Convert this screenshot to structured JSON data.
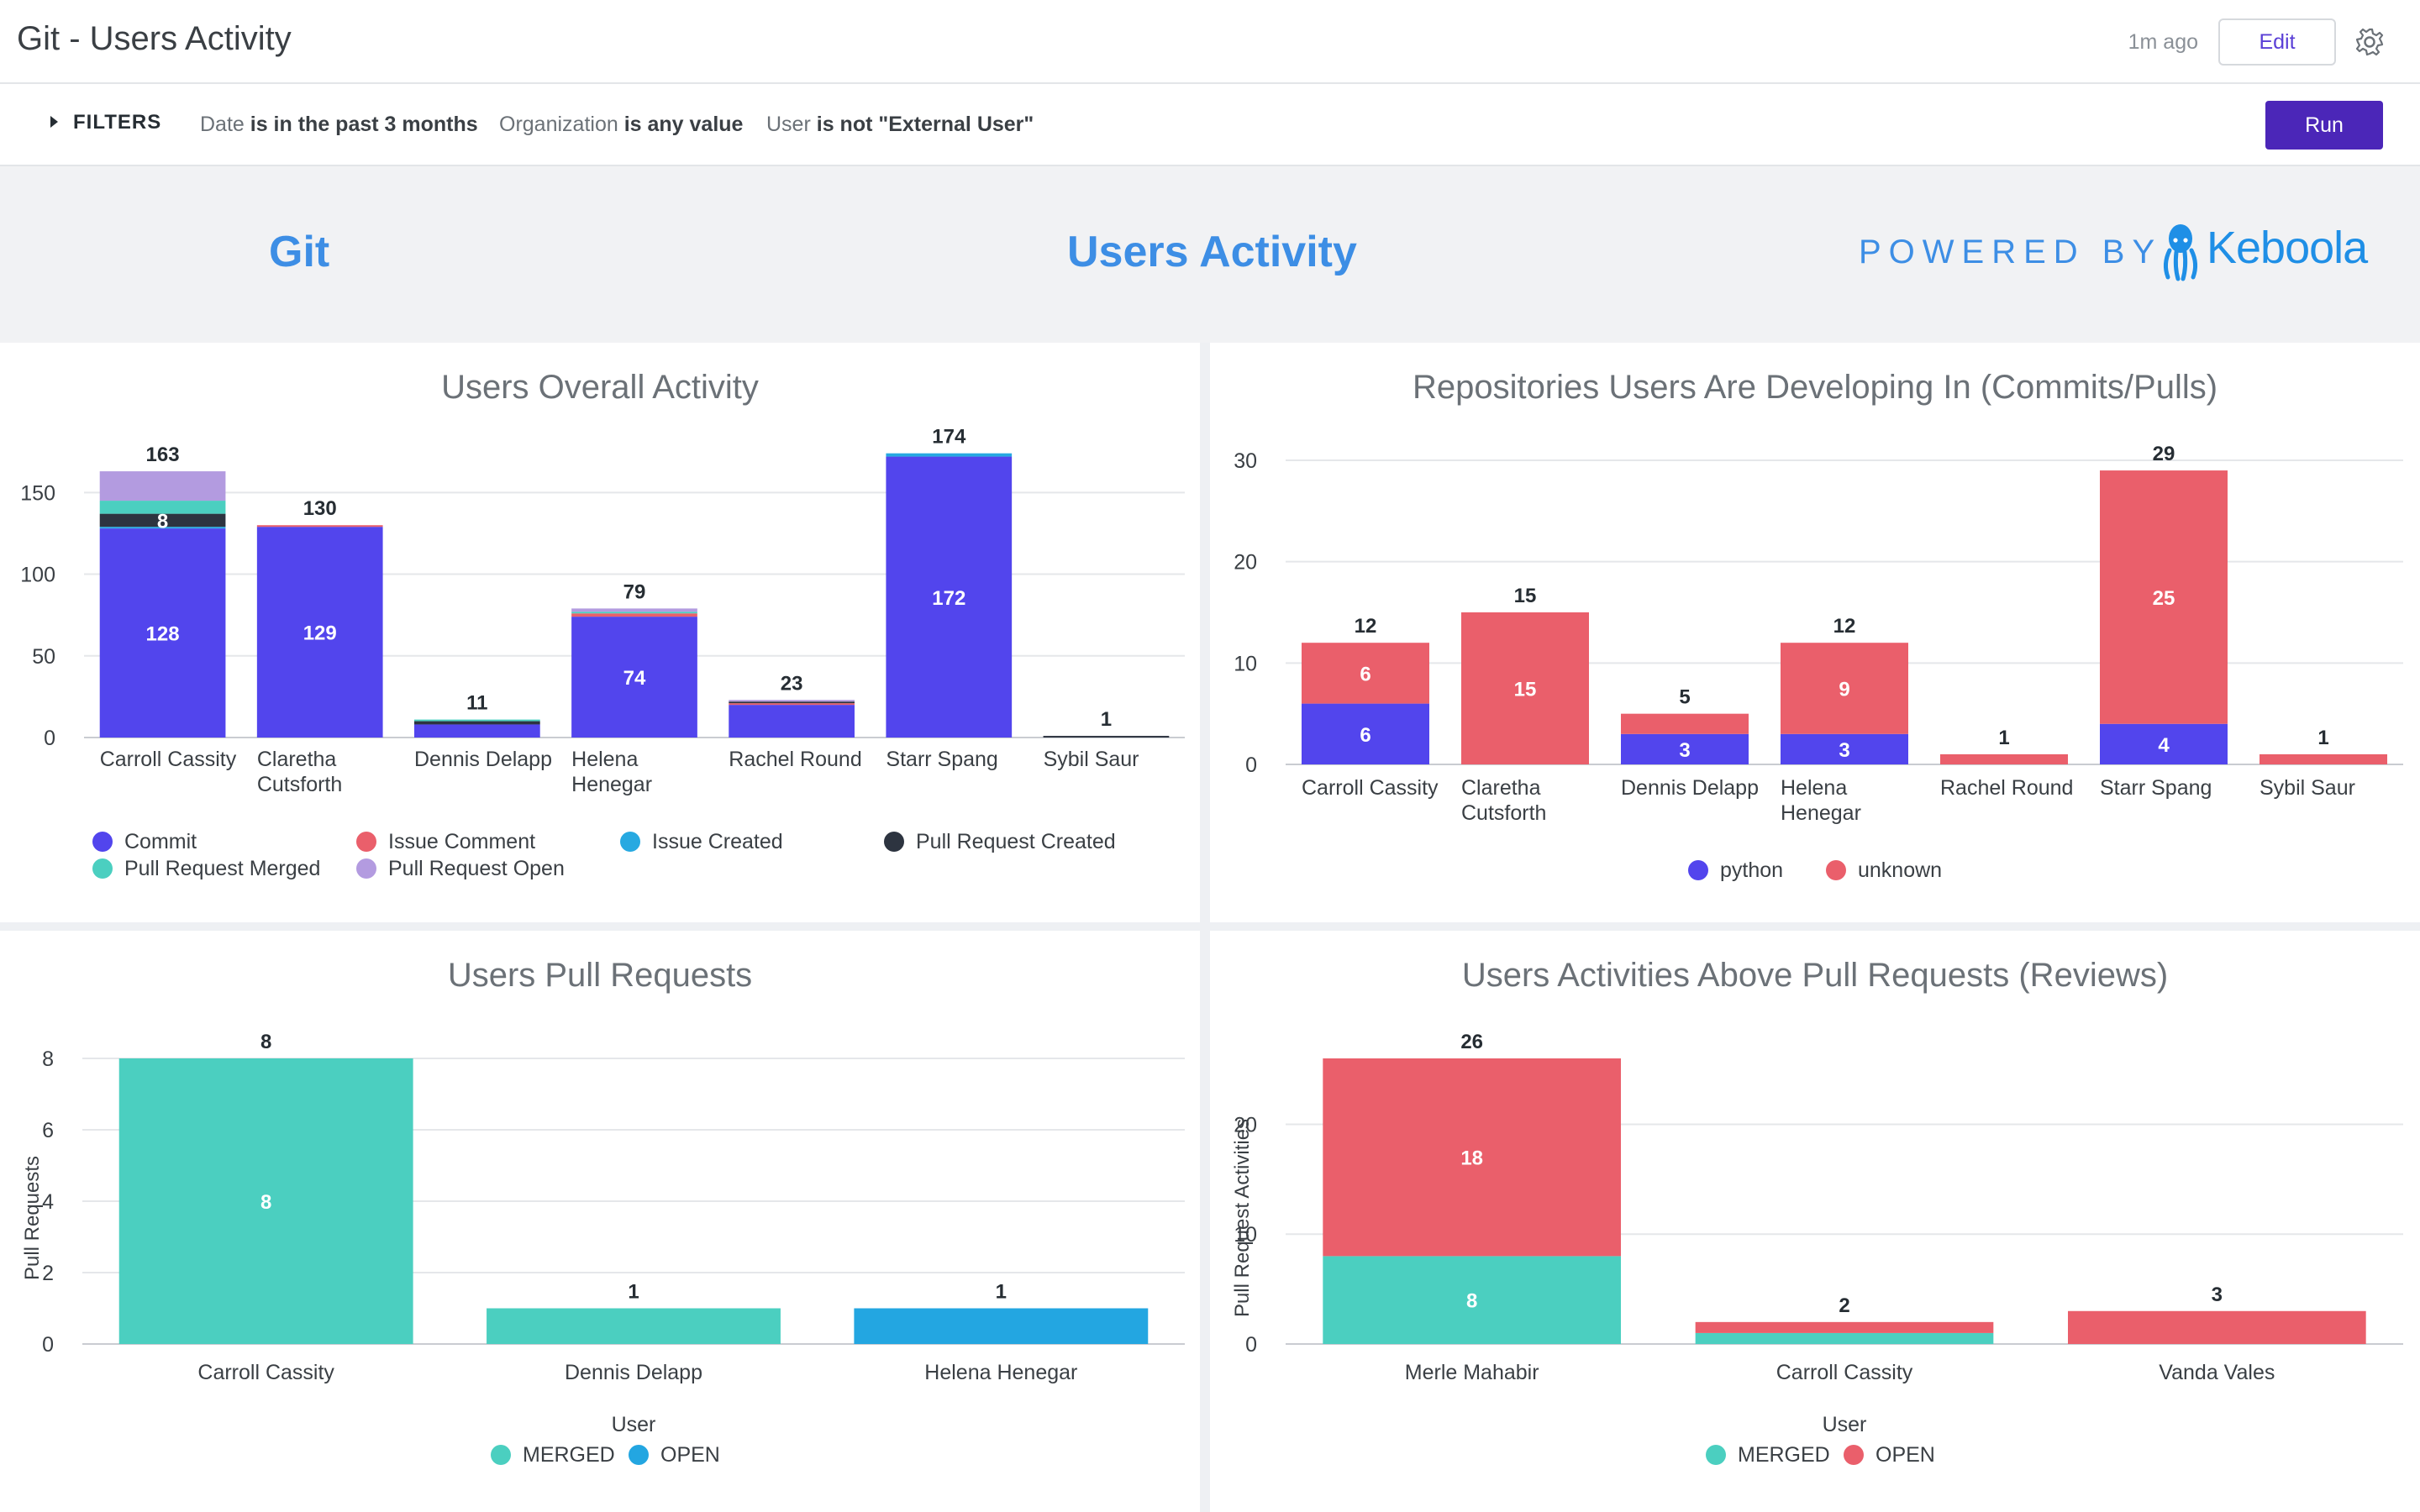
{
  "header": {
    "title": "Git - Users Activity",
    "last_run": "1m ago",
    "edit_label": "Edit"
  },
  "filters": {
    "toggle_label": "FILTERS",
    "items": [
      {
        "field": "Date",
        "condition": "is in the past 3 months"
      },
      {
        "field": "Organization",
        "condition": "is any value"
      },
      {
        "field": "User",
        "condition": "is not \"External User\""
      }
    ],
    "run_label": "Run"
  },
  "banner": {
    "left": "Git",
    "center": "Users Activity",
    "powered_by": "POWERED BY",
    "brand": "Keboola"
  },
  "colors": {
    "commit": "#5245ed",
    "issue_comment": "#ea5f6b",
    "issue_created": "#27a9e1",
    "pr_created": "#2d3440",
    "pr_merged": "#4bcfc0",
    "pr_open": "#b39be0",
    "python": "#5245ed",
    "unknown": "#ea5f6b",
    "merged": "#4bcfc0",
    "open_blue": "#23a6e1",
    "open_red": "#ea5f6b"
  },
  "chart_data": [
    {
      "type": "bar",
      "stacked": true,
      "title": "Users Overall Activity",
      "categories": [
        [
          "Carroll Cassity"
        ],
        [
          "Claretha",
          "Cutsforth"
        ],
        [
          "Dennis Delapp"
        ],
        [
          "Helena",
          "Henegar"
        ],
        [
          "Rachel Round"
        ],
        [
          "Starr Spang"
        ],
        [
          "Sybil Saur"
        ]
      ],
      "series": [
        {
          "name": "Commit",
          "color": "#5245ed",
          "values": [
            128,
            129,
            8,
            74,
            20,
            172,
            0
          ]
        },
        {
          "name": "Issue Comment",
          "color": "#ea5f6b",
          "values": [
            0,
            1,
            0,
            2,
            1,
            0,
            0
          ]
        },
        {
          "name": "Issue Created",
          "color": "#27a9e1",
          "values": [
            1,
            0,
            0,
            0,
            0,
            2,
            0
          ]
        },
        {
          "name": "Pull Request Created",
          "color": "#2d3440",
          "values": [
            8,
            0,
            2,
            0,
            1,
            0,
            1
          ]
        },
        {
          "name": "Pull Request Merged",
          "color": "#4bcfc0",
          "values": [
            8,
            0,
            1,
            1,
            0,
            0,
            0
          ]
        },
        {
          "name": "Pull Request Open",
          "color": "#b39be0",
          "values": [
            18,
            0,
            0,
            2,
            1,
            0,
            0
          ]
        }
      ],
      "segment_labels": [
        {
          "category": 0,
          "series": 0,
          "text": "128"
        },
        {
          "category": 0,
          "series": 3,
          "text": "8"
        },
        {
          "category": 1,
          "series": 0,
          "text": "129"
        },
        {
          "category": 3,
          "series": 0,
          "text": "74"
        },
        {
          "category": 5,
          "series": 0,
          "text": "172"
        }
      ],
      "totals": [
        "163",
        "130",
        "11",
        "79",
        "23",
        "174",
        "1"
      ],
      "yticks": [
        0,
        50,
        100,
        150
      ],
      "ylim": [
        0,
        180
      ],
      "legend": "bottom"
    },
    {
      "type": "bar",
      "stacked": true,
      "title": "Repositories Users Are Developing In (Commits/Pulls)",
      "categories": [
        [
          "Carroll Cassity"
        ],
        [
          "Claretha",
          "Cutsforth"
        ],
        [
          "Dennis Delapp"
        ],
        [
          "Helena",
          "Henegar"
        ],
        [
          "Rachel Round"
        ],
        [
          "Starr Spang"
        ],
        [
          "Sybil Saur"
        ]
      ],
      "series": [
        {
          "name": "python",
          "color": "#5245ed",
          "values": [
            6,
            0,
            3,
            3,
            0,
            4,
            0
          ]
        },
        {
          "name": "unknown",
          "color": "#ea5f6b",
          "values": [
            6,
            15,
            2,
            9,
            1,
            25,
            1
          ]
        }
      ],
      "segment_labels": [
        {
          "category": 0,
          "series": 0,
          "text": "6"
        },
        {
          "category": 0,
          "series": 1,
          "text": "6"
        },
        {
          "category": 1,
          "series": 1,
          "text": "15"
        },
        {
          "category": 2,
          "series": 0,
          "text": "3"
        },
        {
          "category": 3,
          "series": 0,
          "text": "3"
        },
        {
          "category": 3,
          "series": 1,
          "text": "9"
        },
        {
          "category": 5,
          "series": 0,
          "text": "4"
        },
        {
          "category": 5,
          "series": 1,
          "text": "25"
        }
      ],
      "totals": [
        "12",
        "15",
        "5",
        "12",
        "1",
        "29",
        "1"
      ],
      "yticks": [
        0,
        10,
        20,
        30
      ],
      "ylim": [
        0,
        30
      ],
      "legend": "bottom"
    },
    {
      "type": "bar",
      "stacked": true,
      "title": "Users Pull Requests",
      "categories": [
        [
          "Carroll Cassity"
        ],
        [
          "Dennis Delapp"
        ],
        [
          "Helena Henegar"
        ]
      ],
      "series": [
        {
          "name": "MERGED",
          "color": "#4bcfc0",
          "values": [
            8,
            1,
            0
          ]
        },
        {
          "name": "OPEN",
          "color": "#23a6e1",
          "values": [
            0,
            0,
            1
          ]
        }
      ],
      "segment_labels": [
        {
          "category": 0,
          "series": 0,
          "text": "8"
        }
      ],
      "totals": [
        "8",
        "1",
        "1"
      ],
      "xlabel": "User",
      "ylabel": "Pull Requests",
      "yticks": [
        0,
        2,
        4,
        6,
        8
      ],
      "ylim": [
        0,
        8
      ],
      "legend": "bottom"
    },
    {
      "type": "bar",
      "stacked": true,
      "title": "Users Activities Above Pull Requests (Reviews)",
      "categories": [
        [
          "Merle Mahabir"
        ],
        [
          "Carroll Cassity"
        ],
        [
          "Vanda Vales"
        ]
      ],
      "series": [
        {
          "name": "MERGED",
          "color": "#4bcfc0",
          "values": [
            8,
            1,
            0
          ]
        },
        {
          "name": "OPEN",
          "color": "#ea5f6b",
          "values": [
            18,
            1,
            3
          ]
        }
      ],
      "segment_labels": [
        {
          "category": 0,
          "series": 0,
          "text": "8"
        },
        {
          "category": 0,
          "series": 1,
          "text": "18"
        }
      ],
      "totals": [
        "26",
        "2",
        "3"
      ],
      "xlabel": "User",
      "ylabel": "Pull Request Activities",
      "yticks": [
        0,
        10,
        20
      ],
      "ylim": [
        0,
        26
      ],
      "legend": "bottom"
    }
  ]
}
